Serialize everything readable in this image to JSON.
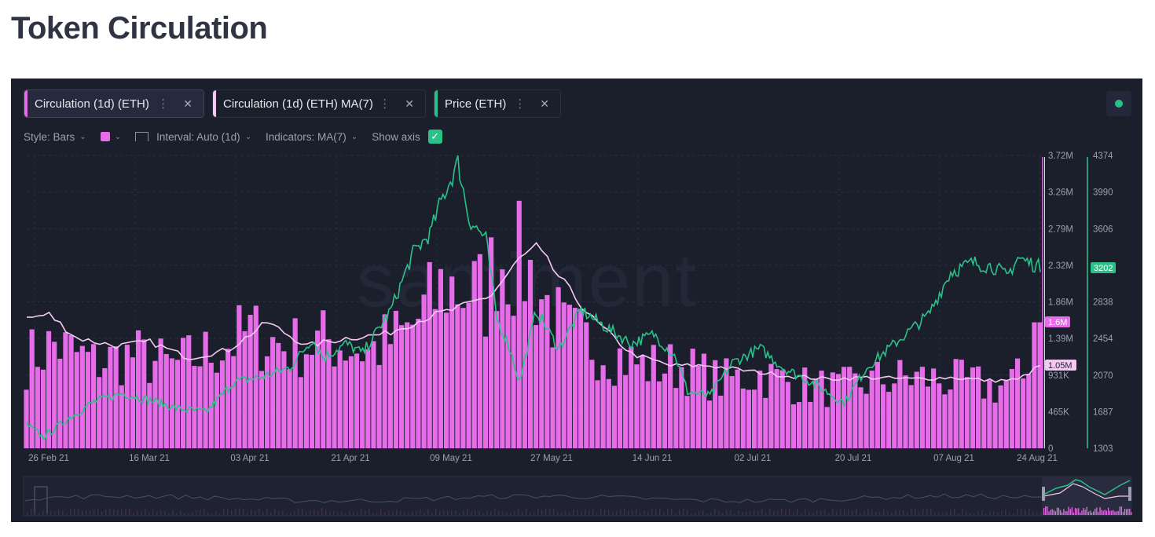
{
  "page": {
    "title": "Token Circulation"
  },
  "tabs": [
    {
      "label": "Circulation (1d) (ETH)",
      "color": "#e76ce9"
    },
    {
      "label": "Circulation (1d) (ETH) MA(7)",
      "color": "#f3c9f4"
    },
    {
      "label": "Price (ETH)",
      "color": "#2ac189"
    }
  ],
  "settings": {
    "style": "Style: Bars",
    "interval": "Interval: Auto (1d)",
    "indicators": "Indicators: MA(7)",
    "show_axis": "Show axis",
    "swatch_color": "#e76ce9"
  },
  "icons": {
    "chevron": "chevron-down-icon",
    "close": "close-icon",
    "menu": "more-vertical-icon",
    "interval": "interval-icon",
    "check": "check-icon",
    "status": "status-dot-icon"
  },
  "watermark": "santiment",
  "chart_data": {
    "type": "bar",
    "x_ticks": [
      "26 Feb 21",
      "16 Mar 21",
      "03 Apr 21",
      "21 Apr 21",
      "09 May 21",
      "27 May 21",
      "14 Jun 21",
      "02 Jul 21",
      "20 Jul 21",
      "07 Aug 21",
      "24 Aug 21"
    ],
    "x_start": "2021-02-24",
    "x_end": "2021-08-24",
    "circ_axis": {
      "ticks": [
        "3.72M",
        "3.26M",
        "2.79M",
        "2.32M",
        "1.86M",
        "1.39M",
        "931K",
        "465K",
        "0"
      ],
      "ylim": [
        0,
        3720000
      ]
    },
    "price_axis": {
      "ticks": [
        "4374",
        "3990",
        "3606",
        "3202",
        "2838",
        "2454",
        "2070",
        "1687",
        "1303"
      ],
      "ylim": [
        1303,
        4374
      ]
    },
    "last_values": {
      "circulation": "1.6M",
      "circulation_ma7": "1.05M",
      "price": "3202"
    },
    "series": [
      {
        "name": "Circulation (1d) (ETH)",
        "kind": "bar",
        "color": "#e76ce9",
        "anchors": [
          [
            "2021-02-24",
            1.2
          ],
          [
            "2021-03-01",
            1.4
          ],
          [
            "2021-03-08",
            1.15
          ],
          [
            "2021-03-15",
            1.25
          ],
          [
            "2021-03-22",
            1.1
          ],
          [
            "2021-03-29",
            1.3
          ],
          [
            "2021-04-05",
            1.55
          ],
          [
            "2021-04-12",
            1.35
          ],
          [
            "2021-04-19",
            1.45
          ],
          [
            "2021-04-26",
            1.3
          ],
          [
            "2021-05-03",
            1.55
          ],
          [
            "2021-05-10",
            2.2
          ],
          [
            "2021-05-17",
            2.05
          ],
          [
            "2021-05-19",
            2.6
          ],
          [
            "2021-05-24",
            2.45
          ],
          [
            "2021-05-31",
            1.55
          ],
          [
            "2021-06-07",
            1.35
          ],
          [
            "2021-06-14",
            1.1
          ],
          [
            "2021-06-21",
            1.1
          ],
          [
            "2021-06-28",
            0.9
          ],
          [
            "2021-07-05",
            1.0
          ],
          [
            "2021-07-12",
            0.85
          ],
          [
            "2021-07-19",
            0.8
          ],
          [
            "2021-07-26",
            0.92
          ],
          [
            "2021-08-02",
            0.95
          ],
          [
            "2021-08-09",
            0.9
          ],
          [
            "2021-08-16",
            0.82
          ],
          [
            "2021-08-21",
            0.95
          ],
          [
            "2021-08-23",
            1.6
          ]
        ]
      },
      {
        "name": "Circulation (1d) (ETH) MA(7)",
        "kind": "line",
        "color": "#f3c9f4",
        "anchors": [
          [
            "2021-02-24",
            1.65
          ],
          [
            "2021-02-28",
            1.7
          ],
          [
            "2021-03-05",
            1.4
          ],
          [
            "2021-03-12",
            1.3
          ],
          [
            "2021-03-18",
            1.35
          ],
          [
            "2021-03-25",
            1.15
          ],
          [
            "2021-04-01",
            1.25
          ],
          [
            "2021-04-08",
            1.6
          ],
          [
            "2021-04-15",
            1.3
          ],
          [
            "2021-04-22",
            1.4
          ],
          [
            "2021-04-29",
            1.45
          ],
          [
            "2021-05-06",
            1.65
          ],
          [
            "2021-05-13",
            1.8
          ],
          [
            "2021-05-18",
            1.95
          ],
          [
            "2021-05-23",
            2.4
          ],
          [
            "2021-05-26",
            2.55
          ],
          [
            "2021-06-01",
            2.0
          ],
          [
            "2021-06-05",
            1.65
          ],
          [
            "2021-06-12",
            1.2
          ],
          [
            "2021-06-19",
            1.05
          ],
          [
            "2021-06-26",
            1.05
          ],
          [
            "2021-07-03",
            0.98
          ],
          [
            "2021-07-10",
            0.92
          ],
          [
            "2021-07-17",
            0.88
          ],
          [
            "2021-07-24",
            0.9
          ],
          [
            "2021-08-01",
            0.88
          ],
          [
            "2021-08-08",
            0.9
          ],
          [
            "2021-08-15",
            0.86
          ],
          [
            "2021-08-20",
            0.87
          ],
          [
            "2021-08-24",
            1.05
          ]
        ]
      },
      {
        "name": "Price (ETH)",
        "kind": "line",
        "color": "#2ac189",
        "anchors": [
          [
            "2021-02-24",
            1550
          ],
          [
            "2021-02-27",
            1420
          ],
          [
            "2021-03-03",
            1600
          ],
          [
            "2021-03-08",
            1790
          ],
          [
            "2021-03-13",
            1880
          ],
          [
            "2021-03-18",
            1810
          ],
          [
            "2021-03-23",
            1720
          ],
          [
            "2021-03-28",
            1680
          ],
          [
            "2021-04-02",
            2000
          ],
          [
            "2021-04-07",
            2050
          ],
          [
            "2021-04-12",
            2150
          ],
          [
            "2021-04-16",
            2450
          ],
          [
            "2021-04-18",
            2250
          ],
          [
            "2021-04-22",
            2400
          ],
          [
            "2021-04-25",
            2300
          ],
          [
            "2021-04-30",
            2750
          ],
          [
            "2021-05-04",
            3350
          ],
          [
            "2021-05-07",
            3550
          ],
          [
            "2021-05-09",
            3900
          ],
          [
            "2021-05-11",
            4150
          ],
          [
            "2021-05-12",
            4300
          ],
          [
            "2021-05-14",
            3700
          ],
          [
            "2021-05-17",
            3500
          ],
          [
            "2021-05-19",
            2650
          ],
          [
            "2021-05-21",
            2400
          ],
          [
            "2021-05-23",
            2000
          ],
          [
            "2021-05-26",
            2750
          ],
          [
            "2021-05-30",
            2350
          ],
          [
            "2021-06-03",
            2750
          ],
          [
            "2021-06-08",
            2550
          ],
          [
            "2021-06-12",
            2400
          ],
          [
            "2021-06-16",
            2500
          ],
          [
            "2021-06-20",
            2250
          ],
          [
            "2021-06-22",
            1900
          ],
          [
            "2021-06-26",
            1850
          ],
          [
            "2021-06-30",
            2200
          ],
          [
            "2021-07-05",
            2350
          ],
          [
            "2021-07-09",
            2150
          ],
          [
            "2021-07-14",
            2000
          ],
          [
            "2021-07-20",
            1780
          ],
          [
            "2021-07-24",
            2150
          ],
          [
            "2021-07-30",
            2450
          ],
          [
            "2021-08-04",
            2700
          ],
          [
            "2021-08-08",
            3150
          ],
          [
            "2021-08-12",
            3250
          ],
          [
            "2021-08-16",
            3200
          ],
          [
            "2021-08-18",
            3100
          ],
          [
            "2021-08-20",
            3300
          ],
          [
            "2021-08-22",
            3250
          ],
          [
            "2021-08-24",
            3200
          ]
        ]
      }
    ]
  }
}
